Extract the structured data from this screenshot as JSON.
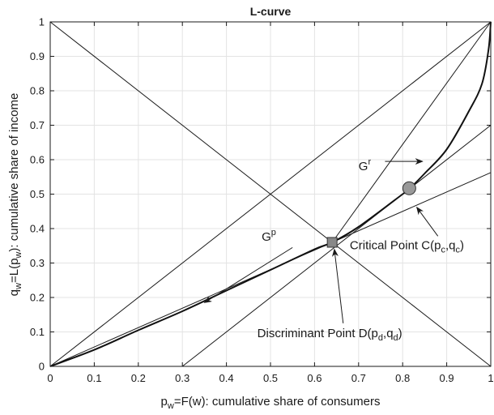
{
  "chart_data": {
    "type": "line",
    "title": "L-curve",
    "xlabel": {
      "a": "p",
      "a_sub": "w",
      "b": "=F(w): cumulative share of consumers"
    },
    "ylabel": {
      "a": "q",
      "a_sub": "w",
      "b": "=L(p",
      "b_sub": "w",
      "c": "): cumulative share of income"
    },
    "xlim": [
      0,
      1
    ],
    "ylim": [
      0,
      1
    ],
    "grid": true,
    "xticks": [
      "0",
      "0.1",
      "0.2",
      "0.3",
      "0.4",
      "0.5",
      "0.6",
      "0.7",
      "0.8",
      "0.9",
      "1"
    ],
    "yticks": [
      "0",
      "0.1",
      "0.2",
      "0.3",
      "0.4",
      "0.5",
      "0.6",
      "0.7",
      "0.8",
      "0.9",
      "1"
    ],
    "series": [
      {
        "x": [
          0,
          0.1,
          0.2,
          0.3,
          0.4,
          0.5,
          0.6,
          0.64,
          0.7,
          0.8,
          0.815,
          0.85,
          0.9,
          0.95,
          0.98,
          0.995,
          1
        ],
        "y": [
          0,
          0.048,
          0.105,
          0.16,
          0.22,
          0.28,
          0.34,
          0.36,
          0.405,
          0.5,
          0.515,
          0.56,
          0.63,
          0.74,
          0.82,
          0.92,
          1.0
        ]
      }
    ],
    "reference_lines": [
      {
        "x": [
          0,
          1
        ],
        "y": [
          0,
          1
        ]
      },
      {
        "x": [
          0,
          1
        ],
        "y": [
          1,
          0
        ]
      },
      {
        "x": [
          0,
          1
        ],
        "y": [
          0,
          0.5625
        ]
      },
      {
        "x": [
          0.3,
          1
        ],
        "y": [
          0,
          0.7
        ]
      },
      {
        "x": [
          0.64,
          1
        ],
        "y": [
          0.36,
          1
        ]
      }
    ],
    "points": [
      {
        "x": 0.64,
        "y": 0.36,
        "shape": "square",
        "color": "#888888"
      },
      {
        "x": 0.815,
        "y": 0.517,
        "shape": "circle",
        "color": "#999999"
      }
    ],
    "annotations": [
      {
        "id": "gr",
        "parts": [
          {
            "t": "G"
          },
          {
            "t": "r",
            "sup": true
          }
        ],
        "text_at": [
          0.7,
          0.57
        ],
        "arrow_from": [
          0.76,
          0.595
        ],
        "arrow_to": [
          0.845,
          0.595
        ]
      },
      {
        "id": "gp",
        "parts": [
          {
            "t": "G"
          },
          {
            "t": "p",
            "sup": true
          }
        ],
        "text_at": [
          0.48,
          0.365
        ],
        "arrow_from": [
          0.55,
          0.345
        ],
        "arrow_to": [
          0.35,
          0.185
        ]
      },
      {
        "id": "critical",
        "parts": [
          {
            "t": "Critical Point C("
          },
          {
            "t": "p"
          },
          {
            "t": "c",
            "sub": true
          },
          {
            "t": ","
          },
          {
            "t": "q"
          },
          {
            "t": "c",
            "sub": true
          },
          {
            "t": ")"
          }
        ],
        "text_at": [
          0.68,
          0.34
        ],
        "arrow_from": [
          0.88,
          0.378
        ],
        "arrow_to": [
          0.832,
          0.462
        ]
      },
      {
        "id": "discriminant",
        "parts": [
          {
            "t": "Discriminant Point D("
          },
          {
            "t": "p"
          },
          {
            "t": "d",
            "sub": true
          },
          {
            "t": ","
          },
          {
            "t": "q"
          },
          {
            "t": "d",
            "sub": true
          },
          {
            "t": ")"
          }
        ],
        "text_at": [
          0.47,
          0.085
        ],
        "arrow_from": [
          0.665,
          0.125
        ],
        "arrow_to": [
          0.645,
          0.34
        ]
      }
    ]
  }
}
